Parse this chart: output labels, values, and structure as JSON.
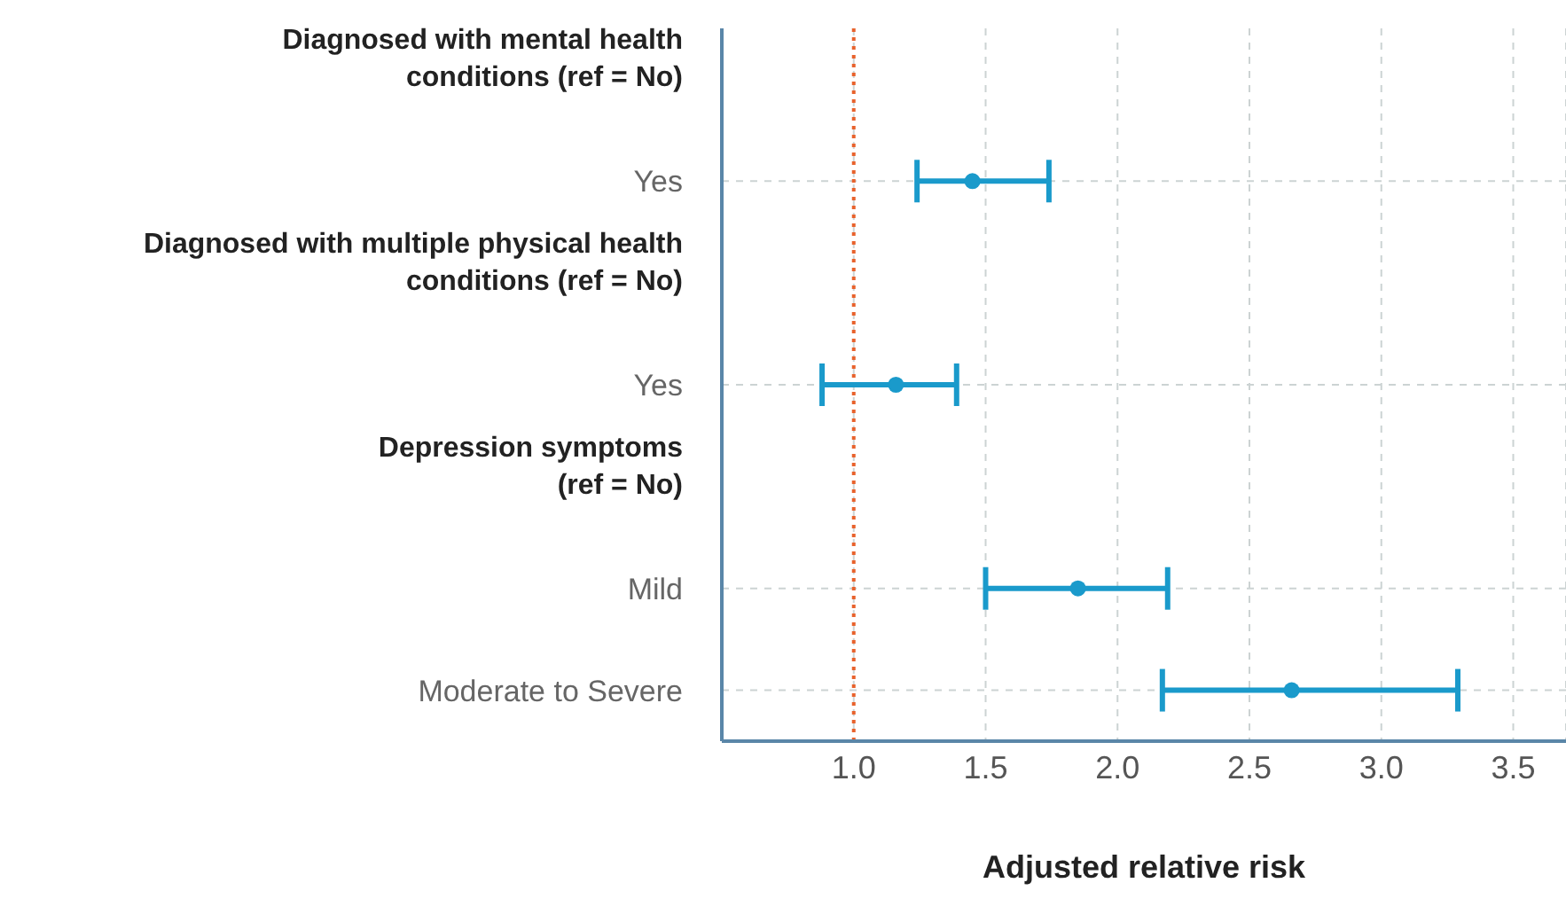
{
  "chart_data": {
    "type": "scatter",
    "orientation": "horizontal",
    "xlabel": "Adjusted relative risk",
    "categories": [
      "Diagnosed with mental health\nconditions (ref = No)",
      "Yes",
      "Diagnosed with multiple physical health\nconditions (ref = No)",
      "Yes",
      "Depression symptoms\n(ref = No)",
      "Mild",
      "Moderate to Severe"
    ],
    "series": [
      {
        "color": "#1a9acb",
        "values": [
          null,
          1.45,
          null,
          1.16,
          null,
          1.85,
          2.66
        ],
        "errors": [
          null,
          [
            1.24,
            1.74
          ],
          null,
          [
            0.88,
            1.39
          ],
          null,
          [
            1.5,
            2.19
          ],
          [
            2.17,
            3.29
          ]
        ]
      }
    ],
    "xlim": [
      0.5,
      3.7
    ],
    "xticks": [
      {
        "value": 1,
        "label": "1.0"
      },
      {
        "value": 1.5,
        "label": "1.5"
      },
      {
        "value": 2,
        "label": "2.0"
      },
      {
        "value": 2.5,
        "label": "2.5"
      },
      {
        "value": 3,
        "label": "3.0"
      },
      {
        "value": 3.5,
        "label": "3.5"
      }
    ],
    "ref_lines": [
      {
        "axis": "x",
        "value": 1,
        "color": "#e8622c",
        "line_style": "dotted"
      }
    ],
    "grid": true,
    "marker": "circle"
  }
}
